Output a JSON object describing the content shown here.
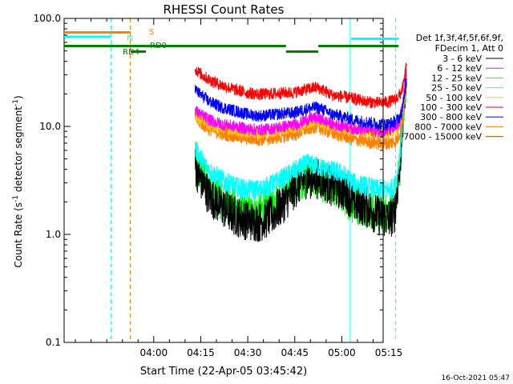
{
  "chart_data": {
    "type": "line",
    "title": "RHESSI Count Rates",
    "xlabel": "Start Time (22-Apr-05 03:45:42)",
    "ylabel_parts": [
      "Count Rate (s",
      "-1",
      " detector segment",
      "-1",
      ")"
    ],
    "ylim": [
      0.1,
      100
    ],
    "yscale": "log",
    "y_ticks": [
      {
        "v": 0.1,
        "label": "0.1"
      },
      {
        "v": 1,
        "label": "1.0"
      },
      {
        "v": 10,
        "label": "10.0"
      },
      {
        "v": 100,
        "label": "100.0"
      }
    ],
    "x_range_min": [
      -14.3,
      87.5
    ],
    "x_ticks": [
      {
        "m": 14.3,
        "label": "04:00"
      },
      {
        "m": 29.3,
        "label": "04:15"
      },
      {
        "m": 44.3,
        "label": "04:30"
      },
      {
        "m": 59.3,
        "label": "04:45"
      },
      {
        "m": 74.3,
        "label": "05:00"
      },
      {
        "m": 89.3,
        "label": "05:15"
      }
    ],
    "legend_header": [
      "Det 1f,3f,4f,5f,6f,9f,",
      "FDecim 1, Att 0"
    ],
    "series": [
      {
        "name": "3 - 6 keV",
        "color": "#000000",
        "values": [
          [
            27.5,
            4.3
          ],
          [
            29,
            3.3
          ],
          [
            32,
            2.3
          ],
          [
            36,
            1.8
          ],
          [
            40,
            1.5
          ],
          [
            44,
            1.35
          ],
          [
            48,
            1.3
          ],
          [
            52,
            1.5
          ],
          [
            56,
            2.0
          ],
          [
            60,
            2.8
          ],
          [
            63,
            3.3
          ],
          [
            66,
            3.3
          ],
          [
            68,
            3.2
          ],
          [
            71,
            2.8
          ],
          [
            74,
            2.6
          ],
          [
            76,
            2.4
          ],
          [
            78,
            2.0
          ],
          [
            82,
            1.8
          ],
          [
            86,
            1.5
          ],
          [
            89,
            1.4
          ],
          [
            91,
            1.5
          ],
          [
            92,
            2.5
          ],
          [
            93,
            5
          ],
          [
            94,
            14
          ],
          [
            95,
            36
          ]
        ]
      },
      {
        "name": "6 - 12 keV",
        "color": "#ff00ff",
        "values": [
          [
            27.5,
            14
          ],
          [
            29,
            13
          ],
          [
            32,
            11.5
          ],
          [
            36,
            10.5
          ],
          [
            40,
            10
          ],
          [
            44,
            9.5
          ],
          [
            48,
            9.3
          ],
          [
            52,
            9.5
          ],
          [
            56,
            10
          ],
          [
            60,
            10.5
          ],
          [
            63,
            11.5
          ],
          [
            66,
            12
          ],
          [
            68,
            11.5
          ],
          [
            71,
            10.5
          ],
          [
            74,
            10.2
          ],
          [
            76,
            10
          ],
          [
            78,
            9.6
          ],
          [
            82,
            9.3
          ],
          [
            86,
            9
          ],
          [
            89,
            9.1
          ],
          [
            91,
            9.5
          ],
          [
            92,
            10
          ],
          [
            93,
            12
          ],
          [
            94,
            18
          ],
          [
            95,
            34
          ]
        ]
      },
      {
        "name": "12 - 25 keV",
        "color": "#00ff00",
        "values": [
          [
            27.5,
            4.8
          ],
          [
            29,
            3.8
          ],
          [
            32,
            2.7
          ],
          [
            36,
            2.1
          ],
          [
            40,
            1.75
          ],
          [
            44,
            1.55
          ],
          [
            48,
            1.6
          ],
          [
            52,
            1.9
          ],
          [
            56,
            2.4
          ],
          [
            60,
            3.0
          ],
          [
            63,
            3.5
          ],
          [
            66,
            3.3
          ],
          [
            68,
            3.1
          ],
          [
            71,
            2.8
          ],
          [
            74,
            2.5
          ],
          [
            76,
            2.2
          ],
          [
            78,
            1.9
          ],
          [
            82,
            1.8
          ],
          [
            86,
            1.6
          ],
          [
            89,
            1.6
          ],
          [
            91,
            1.7
          ],
          [
            92,
            2.6
          ],
          [
            93,
            5
          ],
          [
            94,
            13
          ],
          [
            95,
            32
          ]
        ]
      },
      {
        "name": "25 - 50 keV",
        "color": "#00ffff",
        "values": [
          [
            27.5,
            6.2
          ],
          [
            29,
            5.2
          ],
          [
            32,
            3.9
          ],
          [
            36,
            3.2
          ],
          [
            40,
            2.8
          ],
          [
            44,
            2.6
          ],
          [
            48,
            2.6
          ],
          [
            52,
            2.9
          ],
          [
            56,
            3.4
          ],
          [
            60,
            4.0
          ],
          [
            63,
            4.5
          ],
          [
            66,
            4.3
          ],
          [
            68,
            4.1
          ],
          [
            71,
            3.9
          ],
          [
            74,
            3.7
          ],
          [
            76,
            3.4
          ],
          [
            78,
            3.0
          ],
          [
            82,
            2.8
          ],
          [
            86,
            2.6
          ],
          [
            89,
            2.6
          ],
          [
            91,
            2.7
          ],
          [
            92,
            3.5
          ],
          [
            93,
            6
          ],
          [
            94,
            14
          ],
          [
            95,
            30
          ]
        ]
      },
      {
        "name": "50 - 100 keV",
        "color": "#ffcc00",
        "values": [
          [
            27.5,
            13
          ],
          [
            29,
            12
          ],
          [
            32,
            10.5
          ],
          [
            36,
            9.7
          ],
          [
            40,
            9.3
          ],
          [
            44,
            8.9
          ],
          [
            48,
            8.7
          ],
          [
            52,
            9
          ],
          [
            56,
            9.5
          ],
          [
            60,
            10
          ],
          [
            63,
            10.8
          ],
          [
            66,
            11.2
          ],
          [
            68,
            10.8
          ],
          [
            71,
            10
          ],
          [
            74,
            9.8
          ],
          [
            76,
            9.6
          ],
          [
            78,
            9.2
          ],
          [
            82,
            9
          ],
          [
            86,
            8.7
          ],
          [
            89,
            8.8
          ],
          [
            91,
            9
          ],
          [
            92,
            9.5
          ],
          [
            93,
            11
          ],
          [
            94,
            16
          ],
          [
            95,
            30
          ]
        ]
      },
      {
        "name": "100 - 300 keV",
        "color": "#ff0000",
        "values": [
          [
            27.5,
            34
          ],
          [
            29,
            31
          ],
          [
            32,
            27
          ],
          [
            36,
            24
          ],
          [
            40,
            22
          ],
          [
            44,
            20.5
          ],
          [
            48,
            19.8
          ],
          [
            52,
            20
          ],
          [
            56,
            20.5
          ],
          [
            59,
            20.5
          ],
          [
            60,
            21
          ],
          [
            63,
            22
          ],
          [
            66,
            23
          ],
          [
            68,
            22
          ],
          [
            71,
            19.5
          ],
          [
            74,
            19
          ],
          [
            76,
            18.5
          ],
          [
            78,
            18
          ],
          [
            82,
            17
          ],
          [
            86,
            16.5
          ],
          [
            89,
            16.8
          ],
          [
            91,
            17.5
          ],
          [
            92,
            18.5
          ],
          [
            93,
            20
          ],
          [
            94,
            24
          ],
          [
            95,
            38
          ]
        ]
      },
      {
        "name": "300 - 800 keV",
        "color": "#0000ff",
        "values": [
          [
            27.5,
            22
          ],
          [
            29,
            20
          ],
          [
            32,
            17
          ],
          [
            36,
            15
          ],
          [
            40,
            14
          ],
          [
            44,
            13
          ],
          [
            48,
            12.5
          ],
          [
            52,
            12.8
          ],
          [
            56,
            13.2
          ],
          [
            59,
            13.3
          ],
          [
            60,
            13.6
          ],
          [
            63,
            14.5
          ],
          [
            66,
            15
          ],
          [
            68,
            14.5
          ],
          [
            71,
            13
          ],
          [
            74,
            12.5
          ],
          [
            76,
            12
          ],
          [
            78,
            11.5
          ],
          [
            82,
            11
          ],
          [
            86,
            10.5
          ],
          [
            89,
            10.5
          ],
          [
            91,
            11
          ],
          [
            92,
            11.5
          ],
          [
            93,
            12.5
          ],
          [
            94,
            16
          ],
          [
            95,
            31
          ]
        ]
      },
      {
        "name": "800 - 7000 keV",
        "color": "#ff8000",
        "values": [
          [
            27.5,
            12
          ],
          [
            29,
            11
          ],
          [
            32,
            9.5
          ],
          [
            36,
            8.6
          ],
          [
            40,
            8.2
          ],
          [
            44,
            7.8
          ],
          [
            48,
            7.6
          ],
          [
            52,
            7.8
          ],
          [
            56,
            8.2
          ],
          [
            60,
            8.6
          ],
          [
            63,
            9.5
          ],
          [
            66,
            10
          ],
          [
            68,
            9.5
          ],
          [
            71,
            8.8
          ],
          [
            74,
            8.3
          ],
          [
            76,
            8.0
          ],
          [
            78,
            7.6
          ],
          [
            82,
            7.3
          ],
          [
            86,
            7.0
          ],
          [
            89,
            7.0
          ],
          [
            91,
            7.2
          ],
          [
            92,
            7.6
          ],
          [
            93,
            9
          ],
          [
            94,
            13
          ],
          [
            95,
            28
          ]
        ]
      },
      {
        "name": "7000 - 15000 keV",
        "color": "#b05a00",
        "values": []
      }
    ],
    "attenuator_labels": [
      {
        "text": "S",
        "color": "#ff8000"
      },
      {
        "text": "N",
        "color": "#00ffff"
      },
      {
        "text": "RD0",
        "color": "#008000"
      },
      {
        "text": "RD4",
        "color": "#008000"
      }
    ],
    "footer_timestamp": "16-Oct-2021 05:47"
  }
}
